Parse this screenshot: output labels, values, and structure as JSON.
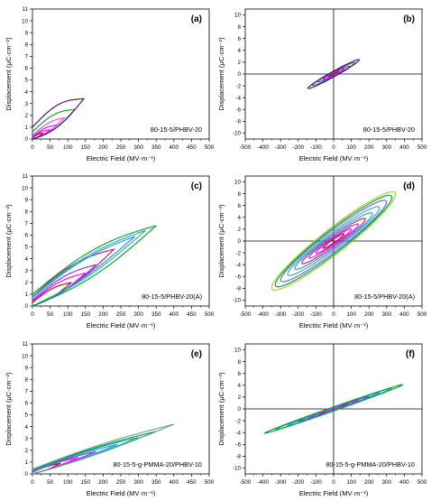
{
  "figure": {
    "panels": [
      {
        "label": "(a)",
        "sample": "80-15-5/PHBV-20",
        "xlabel": "Electric Field (MV·m⁻¹)",
        "ylabel": "Displacement (μC·cm⁻²)"
      },
      {
        "label": "(b)",
        "sample": "80-15-5/PHBV-20",
        "xlabel": "Electric Field (MV·m⁻¹)",
        "ylabel": "Displacement (μC·cm⁻²)"
      },
      {
        "label": "(c)",
        "sample": "80-15-5/PHBV-20(A)",
        "xlabel": "Electric Field (MV·m⁻¹)",
        "ylabel": "Displacement (μC·cm⁻²)"
      },
      {
        "label": "(d)",
        "sample": "80-15-5/PHBV-20(A)",
        "xlabel": "Electric Field (MV·m⁻¹)",
        "ylabel": "Displacement (μC·cm⁻²)"
      },
      {
        "label": "(e)",
        "sample": "80-15-5-g-PMMA-20/PHBV-10",
        "xlabel": "Electric Field (MV·m⁻¹)",
        "ylabel": "Displacement (μC·cm⁻²)"
      },
      {
        "label": "(f)",
        "sample": "80-15-5-g-PMMA-20/PHBV-10",
        "xlabel": "Electric Field (MV·m⁻¹)",
        "ylabel": "Displacement (μC·cm⁻²)"
      }
    ]
  },
  "chart_data": [
    {
      "type": "line",
      "subtype": "unipolar-hysteresis",
      "title": "(a)",
      "annotation": "80-15-5/PHBV-20",
      "xlabel": "Electric Field (MV·m⁻¹)",
      "ylabel": "Displacement (μC·cm⁻²)",
      "xlim": [
        0,
        500
      ],
      "ylim": [
        0,
        11
      ],
      "xticks": [
        0,
        50,
        100,
        150,
        200,
        250,
        300,
        350,
        400,
        450,
        500
      ],
      "yticks": [
        0,
        1,
        2,
        3,
        4,
        5,
        6,
        7,
        8,
        9,
        10,
        11
      ],
      "series": [
        {
          "color": "#8b1a1a",
          "e_max": 30,
          "d_max": 0.5,
          "d_remnant": 0.1,
          "width": 0.08
        },
        {
          "color": "#ff00ff",
          "e_max": 50,
          "d_max": 0.8,
          "d_remnant": 0.15,
          "width": 0.12
        },
        {
          "color": "#8a2be2",
          "e_max": 70,
          "d_max": 1.2,
          "d_remnant": 0.2,
          "width": 0.2
        },
        {
          "color": "#ff40ff",
          "e_max": 90,
          "d_max": 1.8,
          "d_remnant": 0.3,
          "width": 0.3
        },
        {
          "color": "#00a020",
          "e_max": 120,
          "d_max": 2.5,
          "d_remnant": 0.6,
          "width": 0.5
        },
        {
          "color": "#4b0082",
          "e_max": 145,
          "d_max": 3.4,
          "d_remnant": 1.0,
          "width": 0.7
        }
      ]
    },
    {
      "type": "line",
      "subtype": "bipolar-hysteresis",
      "title": "(b)",
      "annotation": "80-15-5/PHBV-20",
      "xlabel": "Electric Field (MV·m⁻¹)",
      "ylabel": "Displacement (μC·cm⁻²)",
      "xlim": [
        -500,
        500
      ],
      "ylim": [
        -11,
        11
      ],
      "xticks": [
        -500,
        -400,
        -300,
        -200,
        -100,
        0,
        100,
        200,
        300,
        400,
        500
      ],
      "yticks": [
        -10,
        -8,
        -6,
        -4,
        -2,
        0,
        2,
        4,
        6,
        8,
        10
      ],
      "series": [
        {
          "color": "#8b1a1a",
          "e_max": 30,
          "d_max": 0.5,
          "width": 0.1
        },
        {
          "color": "#ff00ff",
          "e_max": 60,
          "d_max": 0.9,
          "width": 0.2
        },
        {
          "color": "#8a2be2",
          "e_max": 90,
          "d_max": 1.3,
          "width": 0.3
        },
        {
          "color": "#00a020",
          "e_max": 120,
          "d_max": 1.9,
          "width": 0.4
        },
        {
          "color": "#4b0082",
          "e_max": 145,
          "d_max": 2.4,
          "width": 0.5
        }
      ]
    },
    {
      "type": "line",
      "subtype": "unipolar-hysteresis",
      "title": "(c)",
      "annotation": "80-15-5/PHBV-20(A)",
      "xlabel": "Electric Field (MV·m⁻¹)",
      "ylabel": "Displacement (μC·cm⁻²)",
      "xlim": [
        0,
        500
      ],
      "ylim": [
        0,
        11
      ],
      "xticks": [
        0,
        50,
        100,
        150,
        200,
        250,
        300,
        350,
        400,
        450,
        500
      ],
      "yticks": [
        0,
        1,
        2,
        3,
        4,
        5,
        6,
        7,
        8,
        9,
        10,
        11
      ],
      "series": [
        {
          "color": "#8b1a1a",
          "e_max": 110,
          "d_max": 2.0,
          "d_remnant": 0.3,
          "width": 0.3
        },
        {
          "color": "#ff00ff",
          "e_max": 150,
          "d_max": 2.8,
          "d_remnant": 0.4,
          "width": 0.4
        },
        {
          "color": "#8a2be2",
          "e_max": 180,
          "d_max": 3.5,
          "d_remnant": 0.5,
          "width": 0.5
        },
        {
          "color": "#c2185b",
          "e_max": 230,
          "d_max": 4.8,
          "d_remnant": 0.8,
          "width": 0.7
        },
        {
          "color": "#1e90ff",
          "e_max": 290,
          "d_max": 5.9,
          "d_remnant": 0.7,
          "width": 0.6
        },
        {
          "color": "#20b2aa",
          "e_max": 320,
          "d_max": 6.4,
          "d_remnant": 0.8,
          "width": 0.7
        },
        {
          "color": "#00a020",
          "e_max": 350,
          "d_max": 6.8,
          "d_remnant": 1.0,
          "width": 0.9
        }
      ]
    },
    {
      "type": "line",
      "subtype": "bipolar-hysteresis",
      "title": "(d)",
      "annotation": "80-15-5/PHBV-20(A)",
      "xlabel": "Electric Field (MV·m⁻¹)",
      "ylabel": "Displacement (μC·cm⁻²)",
      "xlim": [
        -500,
        500
      ],
      "ylim": [
        -11,
        11
      ],
      "xticks": [
        -500,
        -400,
        -300,
        -200,
        -100,
        0,
        100,
        200,
        300,
        400,
        500
      ],
      "yticks": [
        -10,
        -8,
        -6,
        -4,
        -2,
        0,
        2,
        4,
        6,
        8,
        10
      ],
      "series": [
        {
          "color": "#8b1a1a",
          "e_max": 60,
          "d_max": 1.2,
          "width": 0.3
        },
        {
          "color": "#ff00ff",
          "e_max": 100,
          "d_max": 2.0,
          "width": 0.5
        },
        {
          "color": "#8a2be2",
          "e_max": 140,
          "d_max": 2.8,
          "width": 0.7
        },
        {
          "color": "#c2185b",
          "e_max": 180,
          "d_max": 3.7,
          "width": 1.0
        },
        {
          "color": "#1e90ff",
          "e_max": 220,
          "d_max": 4.6,
          "width": 1.3
        },
        {
          "color": "#20b2aa",
          "e_max": 260,
          "d_max": 5.6,
          "width": 1.6
        },
        {
          "color": "#6a5acd",
          "e_max": 300,
          "d_max": 6.6,
          "width": 2.0
        },
        {
          "color": "#00a020",
          "e_max": 330,
          "d_max": 7.4,
          "width": 2.3
        },
        {
          "color": "#9acd32",
          "e_max": 350,
          "d_max": 7.9,
          "width": 2.6
        }
      ]
    },
    {
      "type": "line",
      "subtype": "unipolar-hysteresis",
      "title": "(e)",
      "annotation": "80-15-5-g-PMMA-20/PHBV-10",
      "xlabel": "Electric Field (MV·m⁻¹)",
      "ylabel": "Displacement (μC·cm⁻²)",
      "xlim": [
        0,
        500
      ],
      "ylim": [
        0,
        11
      ],
      "xticks": [
        0,
        50,
        100,
        150,
        200,
        250,
        300,
        350,
        400,
        450,
        500
      ],
      "yticks": [
        0,
        1,
        2,
        3,
        4,
        5,
        6,
        7,
        8,
        9,
        10,
        11
      ],
      "series": [
        {
          "color": "#8b1a1a",
          "e_max": 80,
          "d_max": 0.9,
          "d_remnant": 0.15,
          "width": 0.1
        },
        {
          "color": "#ff00ff",
          "e_max": 130,
          "d_max": 1.4,
          "d_remnant": 0.18,
          "width": 0.12
        },
        {
          "color": "#8a2be2",
          "e_max": 180,
          "d_max": 1.9,
          "d_remnant": 0.2,
          "width": 0.15
        },
        {
          "color": "#1e90ff",
          "e_max": 240,
          "d_max": 2.5,
          "d_remnant": 0.25,
          "width": 0.18
        },
        {
          "color": "#20b2aa",
          "e_max": 300,
          "d_max": 3.1,
          "d_remnant": 0.3,
          "width": 0.2
        },
        {
          "color": "#00a020",
          "e_max": 350,
          "d_max": 3.6,
          "d_remnant": 0.35,
          "width": 0.22
        },
        {
          "color": "#5f9ea0",
          "e_max": 400,
          "d_max": 4.2,
          "d_remnant": 0.4,
          "width": 0.25
        }
      ]
    },
    {
      "type": "line",
      "subtype": "bipolar-hysteresis",
      "title": "(f)",
      "annotation": "80-15-5-g-PMMA-20/PHBV-10",
      "xlabel": "Electric Field (MV·m⁻¹)",
      "ylabel": "Displacement (μC·cm⁻²)",
      "xlim": [
        -500,
        500
      ],
      "ylim": [
        -11,
        11
      ],
      "xticks": [
        -500,
        -400,
        -300,
        -200,
        -100,
        0,
        100,
        200,
        300,
        400,
        500
      ],
      "yticks": [
        -10,
        -8,
        -6,
        -4,
        -2,
        0,
        2,
        4,
        6,
        8,
        10
      ],
      "series": [
        {
          "color": "#8b1a1a",
          "e_max": 80,
          "d_max": 0.9,
          "width": 0.12
        },
        {
          "color": "#ff00ff",
          "e_max": 140,
          "d_max": 1.5,
          "width": 0.15
        },
        {
          "color": "#8a2be2",
          "e_max": 200,
          "d_max": 2.1,
          "width": 0.2
        },
        {
          "color": "#1e90ff",
          "e_max": 260,
          "d_max": 2.8,
          "width": 0.25
        },
        {
          "color": "#20b2aa",
          "e_max": 330,
          "d_max": 3.5,
          "width": 0.3
        },
        {
          "color": "#00a020",
          "e_max": 390,
          "d_max": 4.1,
          "width": 0.35
        }
      ]
    }
  ]
}
